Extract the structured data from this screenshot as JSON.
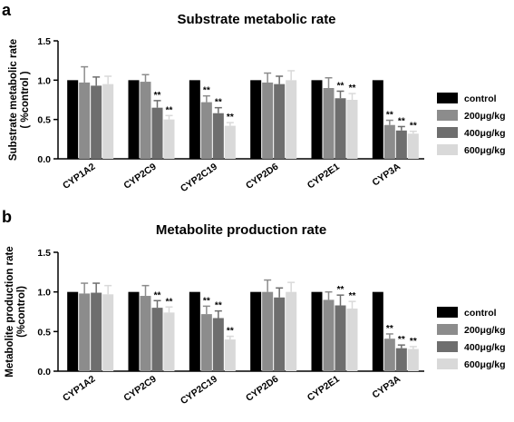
{
  "chart_data": [
    {
      "type": "bar",
      "panel": "a",
      "title": "Substrate metabolic rate",
      "ylabel": [
        "Substrate metabolic rate",
        "( %control )"
      ],
      "ylim": [
        0,
        1.5
      ],
      "yticks": [
        "0.0",
        "0.5",
        "1.0",
        "1.5"
      ],
      "categories": [
        "CYP1A2",
        "CYP2C9",
        "CYP2C19",
        "CYP2D6",
        "CYP2E1",
        "CYP3A"
      ],
      "legend_position": "right",
      "series": [
        {
          "name": "control",
          "color": "#000000",
          "values": [
            1.0,
            1.0,
            1.0,
            1.0,
            1.0,
            1.0
          ],
          "errors": [
            0,
            0,
            0,
            0,
            0,
            0
          ],
          "marks": [
            "",
            "",
            "",
            "",
            "",
            ""
          ]
        },
        {
          "name": "200μg/kg",
          "color": "#8c8c8c",
          "values": [
            0.97,
            0.98,
            0.72,
            0.97,
            0.9,
            0.43
          ],
          "errors": [
            0.2,
            0.09,
            0.08,
            0.12,
            0.13,
            0.06
          ],
          "marks": [
            "",
            "",
            "**",
            "",
            "",
            "**"
          ]
        },
        {
          "name": "400μg/kg",
          "color": "#6e6e6e",
          "values": [
            0.93,
            0.65,
            0.58,
            0.95,
            0.77,
            0.36
          ],
          "errors": [
            0.11,
            0.09,
            0.07,
            0.1,
            0.09,
            0.05
          ],
          "marks": [
            "",
            "**",
            "**",
            "",
            "**",
            "**"
          ]
        },
        {
          "name": "600μg/kg",
          "color": "#d9d9d9",
          "values": [
            0.95,
            0.5,
            0.42,
            1.0,
            0.75,
            0.32
          ],
          "errors": [
            0.1,
            0.05,
            0.04,
            0.12,
            0.08,
            0.03
          ],
          "marks": [
            "",
            "**",
            "**",
            "",
            "**",
            "**"
          ]
        }
      ]
    },
    {
      "type": "bar",
      "panel": "b",
      "title": "Metabolite production rate",
      "ylabel": [
        "Metabolite production rate",
        "(%control)"
      ],
      "ylim": [
        0,
        1.5
      ],
      "yticks": [
        "0.0",
        "0.5",
        "1.0",
        "1.5"
      ],
      "categories": [
        "CYP1A2",
        "CYP2C9",
        "CYP2C19",
        "CYP2D6",
        "CYP2E1",
        "CYP3A"
      ],
      "legend_position": "right",
      "series": [
        {
          "name": "control",
          "color": "#000000",
          "values": [
            1.0,
            1.0,
            1.0,
            1.0,
            1.0,
            1.0
          ],
          "errors": [
            0,
            0,
            0,
            0,
            0,
            0
          ],
          "marks": [
            "",
            "",
            "",
            "",
            "",
            ""
          ]
        },
        {
          "name": "200μg/kg",
          "color": "#8c8c8c",
          "values": [
            0.98,
            0.95,
            0.72,
            1.0,
            0.9,
            0.41
          ],
          "errors": [
            0.13,
            0.13,
            0.1,
            0.15,
            0.1,
            0.06
          ],
          "marks": [
            "",
            "",
            "**",
            "",
            "",
            "**"
          ]
        },
        {
          "name": "400μg/kg",
          "color": "#6e6e6e",
          "values": [
            0.99,
            0.8,
            0.67,
            0.93,
            0.83,
            0.29
          ],
          "errors": [
            0.12,
            0.09,
            0.09,
            0.12,
            0.13,
            0.04
          ],
          "marks": [
            "",
            "**",
            "**",
            "",
            "**",
            "**"
          ]
        },
        {
          "name": "600μg/kg",
          "color": "#d9d9d9",
          "values": [
            0.97,
            0.74,
            0.4,
            1.0,
            0.79,
            0.28
          ],
          "errors": [
            0.11,
            0.07,
            0.04,
            0.12,
            0.09,
            0.03
          ],
          "marks": [
            "",
            "**",
            "**",
            "",
            "**",
            "**"
          ]
        }
      ]
    }
  ]
}
